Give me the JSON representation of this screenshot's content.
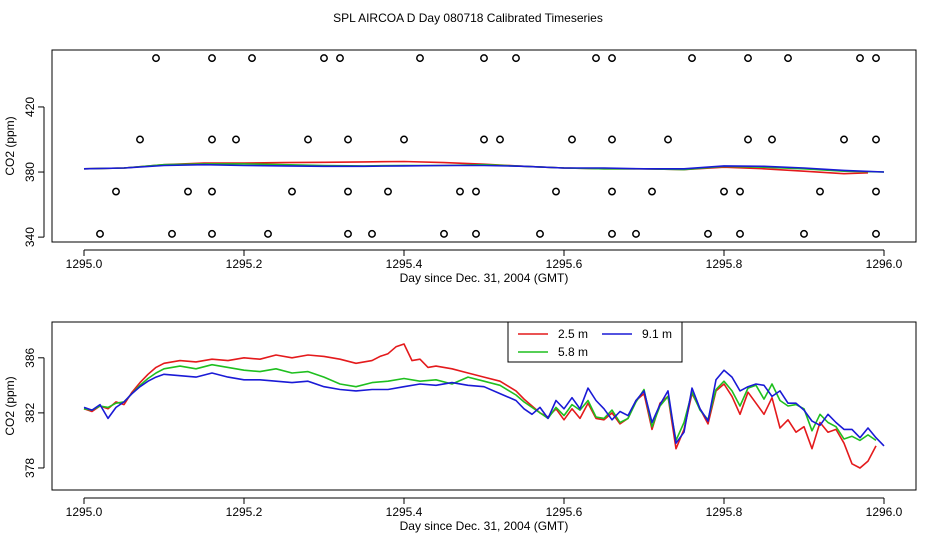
{
  "title": "SPL AIRCOA D  Day 080718  Calibrated Timeseries",
  "colors": {
    "s25": "#e41a1c",
    "s58": "#1fbf1f",
    "s91": "#1a1ad6",
    "axis": "#000000"
  },
  "chart_data": [
    {
      "type": "line",
      "panel": "top",
      "xlabel": "Day since Dec. 31, 2004 (GMT)",
      "ylabel": "CO2 (ppm)",
      "xlim": [
        1295.0,
        1296.0
      ],
      "ylim": [
        337,
        455
      ],
      "xticks": [
        1295.0,
        1295.2,
        1295.4,
        1295.6,
        1295.8,
        1296.0
      ],
      "xtick_labels": [
        "1295.0",
        "1295.2",
        "1295.4",
        "1295.6",
        "1295.8",
        "1296.0"
      ],
      "yticks": [
        340,
        380,
        420
      ],
      "ytick_labels": [
        "340",
        "380",
        "420"
      ],
      "series": [
        {
          "name": "2.5 m",
          "color": "#e41a1c",
          "x": [
            1295.0,
            1295.05,
            1295.1,
            1295.15,
            1295.2,
            1295.25,
            1295.3,
            1295.35,
            1295.4,
            1295.45,
            1295.5,
            1295.55,
            1295.6,
            1295.65,
            1295.7,
            1295.75,
            1295.8,
            1295.85,
            1295.9,
            1295.95,
            1295.98
          ],
          "y": [
            382,
            382.5,
            384.5,
            385.5,
            385.5,
            385.8,
            386,
            386.2,
            386.5,
            385.8,
            384.8,
            383.5,
            382.5,
            382,
            382,
            381.5,
            383,
            382,
            380.5,
            379,
            379.5
          ]
        },
        {
          "name": "5.8 m",
          "color": "#1fbf1f",
          "x": [
            1295.0,
            1295.05,
            1295.1,
            1295.15,
            1295.2,
            1295.25,
            1295.3,
            1295.35,
            1295.4,
            1295.45,
            1295.5,
            1295.55,
            1295.6,
            1295.65,
            1295.7,
            1295.75,
            1295.8,
            1295.85,
            1295.9,
            1295.95,
            1296.0
          ],
          "y": [
            382,
            382.5,
            384.5,
            385,
            385,
            384.5,
            384,
            383.8,
            384,
            384,
            384.5,
            383.5,
            382.5,
            382,
            382,
            381.5,
            383.5,
            383,
            382,
            380.5,
            380
          ]
        },
        {
          "name": "9.1 m",
          "color": "#1a1ad6",
          "x": [
            1295.0,
            1295.05,
            1295.1,
            1295.15,
            1295.2,
            1295.25,
            1295.3,
            1295.35,
            1295.4,
            1295.45,
            1295.5,
            1295.55,
            1295.6,
            1295.65,
            1295.7,
            1295.75,
            1295.8,
            1295.85,
            1295.9,
            1295.95,
            1296.0
          ],
          "y": [
            382,
            382.5,
            384,
            384.5,
            384,
            383.8,
            383.5,
            383.5,
            383.8,
            384,
            384,
            383.5,
            382.5,
            382.5,
            382,
            382,
            383.8,
            383.5,
            382.5,
            381,
            380
          ]
        }
      ],
      "markers": {
        "style": "open circle",
        "x": [
          1295.09,
          1295.16,
          1295.21,
          1295.3,
          1295.32,
          1295.42,
          1295.5,
          1295.54,
          1295.64,
          1295.66,
          1295.76,
          1295.83,
          1295.88,
          1295.97,
          1295.99,
          1295.07,
          1295.16,
          1295.19,
          1295.28,
          1295.33,
          1295.4,
          1295.5,
          1295.52,
          1295.61,
          1295.66,
          1295.73,
          1295.83,
          1295.86,
          1295.95,
          1295.99,
          1295.04,
          1295.13,
          1295.16,
          1295.26,
          1295.33,
          1295.38,
          1295.47,
          1295.49,
          1295.59,
          1295.66,
          1295.71,
          1295.8,
          1295.82,
          1295.92,
          1295.99,
          1295.02,
          1295.11,
          1295.16,
          1295.23,
          1295.33,
          1295.36,
          1295.45,
          1295.49,
          1295.57,
          1295.66,
          1295.69,
          1295.78,
          1295.82,
          1295.9,
          1295.99
        ],
        "y": [
          450,
          450,
          450,
          450,
          450,
          450,
          450,
          450,
          450,
          450,
          450,
          450,
          450,
          450,
          450,
          400,
          400,
          400,
          400,
          400,
          400,
          400,
          400,
          400,
          400,
          400,
          400,
          400,
          400,
          400,
          368,
          368,
          368,
          368,
          368,
          368,
          368,
          368,
          368,
          368,
          368,
          368,
          368,
          368,
          368,
          342,
          342,
          342,
          342,
          342,
          342,
          342,
          342,
          342,
          342,
          342,
          342,
          342,
          342,
          342
        ]
      }
    },
    {
      "type": "line",
      "panel": "bottom",
      "xlabel": "Day since Dec. 31, 2004 (GMT)",
      "ylabel": "CO2 (ppm)",
      "xlim": [
        1295.0,
        1296.0
      ],
      "ylim": [
        376.4,
        388.6
      ],
      "xticks": [
        1295.0,
        1295.2,
        1295.4,
        1295.6,
        1295.8,
        1296.0
      ],
      "xtick_labels": [
        "1295.0",
        "1295.2",
        "1295.4",
        "1295.6",
        "1295.8",
        "1296.0"
      ],
      "yticks": [
        378,
        382,
        386
      ],
      "ytick_labels": [
        "378",
        "382",
        "386"
      ],
      "legend": {
        "position": "top-center",
        "entries": [
          "2.5 m",
          "9.1 m",
          "5.8 m"
        ]
      },
      "series": [
        {
          "name": "2.5 m",
          "color": "#e41a1c",
          "x": [
            1295.0,
            1295.01,
            1295.02,
            1295.03,
            1295.04,
            1295.05,
            1295.06,
            1295.07,
            1295.08,
            1295.09,
            1295.1,
            1295.12,
            1295.14,
            1295.16,
            1295.18,
            1295.2,
            1295.22,
            1295.24,
            1295.26,
            1295.28,
            1295.3,
            1295.32,
            1295.34,
            1295.36,
            1295.37,
            1295.38,
            1295.39,
            1295.4,
            1295.41,
            1295.42,
            1295.43,
            1295.44,
            1295.46,
            1295.48,
            1295.5,
            1295.52,
            1295.54,
            1295.55,
            1295.56,
            1295.57,
            1295.58,
            1295.59,
            1295.6,
            1295.61,
            1295.62,
            1295.63,
            1295.64,
            1295.65,
            1295.66,
            1295.67,
            1295.68,
            1295.69,
            1295.7,
            1295.71,
            1295.72,
            1295.73,
            1295.74,
            1295.75,
            1295.76,
            1295.77,
            1295.78,
            1295.79,
            1295.8,
            1295.81,
            1295.82,
            1295.83,
            1295.84,
            1295.85,
            1295.86,
            1295.87,
            1295.88,
            1295.89,
            1295.9,
            1295.91,
            1295.92,
            1295.93,
            1295.94,
            1295.95,
            1295.96,
            1295.97,
            1295.98,
            1295.99
          ],
          "y": [
            382.3,
            382.1,
            382.5,
            382.3,
            382.8,
            382.6,
            383.5,
            384.2,
            384.8,
            385.3,
            385.6,
            385.8,
            385.7,
            385.9,
            385.8,
            386.0,
            385.9,
            386.2,
            386.0,
            386.2,
            386.1,
            385.9,
            385.6,
            385.8,
            386.1,
            386.3,
            386.8,
            387.0,
            385.8,
            385.9,
            385.3,
            385.4,
            385.2,
            384.9,
            384.6,
            384.3,
            383.6,
            383.0,
            382.5,
            382.0,
            381.7,
            382.3,
            381.5,
            382.3,
            381.6,
            382.7,
            381.6,
            381.5,
            382.0,
            381.2,
            381.6,
            382.9,
            383.4,
            380.8,
            382.7,
            383.2,
            379.4,
            380.8,
            383.4,
            382.3,
            381.2,
            383.6,
            384.1,
            383.2,
            381.9,
            383.5,
            382.7,
            381.9,
            383.1,
            380.9,
            381.5,
            380.6,
            381.0,
            379.4,
            381.3,
            380.6,
            380.8,
            379.8,
            378.3,
            378.0,
            378.5,
            379.6
          ]
        },
        {
          "name": "5.8 m",
          "color": "#1fbf1f",
          "x": [
            1295.0,
            1295.01,
            1295.02,
            1295.03,
            1295.04,
            1295.05,
            1295.06,
            1295.07,
            1295.08,
            1295.09,
            1295.1,
            1295.12,
            1295.14,
            1295.16,
            1295.18,
            1295.2,
            1295.22,
            1295.24,
            1295.26,
            1295.28,
            1295.3,
            1295.32,
            1295.34,
            1295.36,
            1295.38,
            1295.4,
            1295.42,
            1295.44,
            1295.46,
            1295.48,
            1295.5,
            1295.52,
            1295.54,
            1295.55,
            1295.56,
            1295.57,
            1295.58,
            1295.59,
            1295.6,
            1295.61,
            1295.62,
            1295.63,
            1295.64,
            1295.65,
            1295.66,
            1295.67,
            1295.68,
            1295.69,
            1295.7,
            1295.71,
            1295.72,
            1295.73,
            1295.74,
            1295.75,
            1295.76,
            1295.77,
            1295.78,
            1295.79,
            1295.8,
            1295.81,
            1295.82,
            1295.83,
            1295.84,
            1295.85,
            1295.86,
            1295.87,
            1295.88,
            1295.89,
            1295.9,
            1295.91,
            1295.92,
            1295.93,
            1295.94,
            1295.95,
            1295.96,
            1295.97,
            1295.98,
            1295.99
          ],
          "y": [
            382.3,
            382.2,
            382.5,
            382.4,
            382.7,
            382.8,
            383.4,
            384.0,
            384.5,
            384.9,
            385.2,
            385.4,
            385.2,
            385.5,
            385.3,
            385.1,
            385.0,
            385.2,
            384.9,
            385.0,
            384.6,
            384.1,
            383.9,
            384.2,
            384.3,
            384.5,
            384.3,
            384.4,
            384.1,
            384.6,
            384.3,
            384.0,
            383.3,
            382.8,
            382.4,
            382.0,
            381.6,
            382.4,
            381.8,
            382.6,
            382.2,
            382.9,
            381.7,
            381.6,
            382.2,
            381.3,
            381.6,
            382.8,
            383.7,
            381.0,
            382.5,
            383.2,
            380.0,
            381.3,
            383.5,
            382.2,
            381.5,
            383.7,
            384.3,
            383.6,
            382.5,
            383.8,
            384.0,
            383.0,
            384.1,
            382.9,
            382.5,
            382.6,
            382.3,
            380.7,
            381.9,
            381.3,
            381.0,
            380.1,
            380.3,
            380.0,
            380.4,
            380.0
          ]
        },
        {
          "name": "9.1 m",
          "color": "#1a1ad6",
          "x": [
            1295.0,
            1295.01,
            1295.02,
            1295.03,
            1295.04,
            1295.05,
            1295.06,
            1295.07,
            1295.08,
            1295.09,
            1295.1,
            1295.12,
            1295.14,
            1295.16,
            1295.18,
            1295.2,
            1295.22,
            1295.24,
            1295.26,
            1295.28,
            1295.3,
            1295.32,
            1295.34,
            1295.36,
            1295.38,
            1295.4,
            1295.42,
            1295.44,
            1295.46,
            1295.48,
            1295.5,
            1295.52,
            1295.54,
            1295.55,
            1295.56,
            1295.57,
            1295.58,
            1295.59,
            1295.6,
            1295.61,
            1295.62,
            1295.63,
            1295.64,
            1295.65,
            1295.66,
            1295.67,
            1295.68,
            1295.69,
            1295.7,
            1295.71,
            1295.72,
            1295.73,
            1295.74,
            1295.75,
            1295.76,
            1295.77,
            1295.78,
            1295.79,
            1295.8,
            1295.81,
            1295.82,
            1295.83,
            1295.84,
            1295.85,
            1295.86,
            1295.87,
            1295.88,
            1295.89,
            1295.9,
            1295.91,
            1295.92,
            1295.93,
            1295.94,
            1295.95,
            1295.96,
            1295.97,
            1295.98,
            1295.99,
            1296.0
          ],
          "y": [
            382.4,
            382.2,
            382.6,
            381.6,
            382.4,
            382.8,
            383.4,
            383.9,
            384.3,
            384.6,
            384.8,
            384.7,
            384.6,
            384.9,
            384.6,
            384.4,
            384.4,
            384.3,
            384.2,
            384.3,
            383.9,
            383.7,
            383.6,
            383.7,
            383.7,
            383.9,
            384.1,
            384.0,
            384.2,
            384.0,
            383.9,
            383.4,
            382.9,
            382.3,
            381.9,
            382.4,
            381.6,
            382.9,
            382.3,
            383.1,
            382.3,
            383.8,
            382.9,
            382.3,
            381.5,
            382.1,
            381.8,
            382.9,
            383.6,
            381.3,
            382.6,
            383.6,
            379.8,
            380.6,
            383.8,
            382.3,
            381.4,
            384.4,
            385.1,
            384.6,
            383.6,
            383.9,
            384.1,
            384.0,
            383.2,
            383.6,
            382.7,
            382.7,
            382.2,
            381.4,
            381.1,
            381.9,
            381.3,
            380.8,
            380.8,
            380.2,
            380.9,
            380.2,
            379.6
          ]
        }
      ]
    }
  ]
}
